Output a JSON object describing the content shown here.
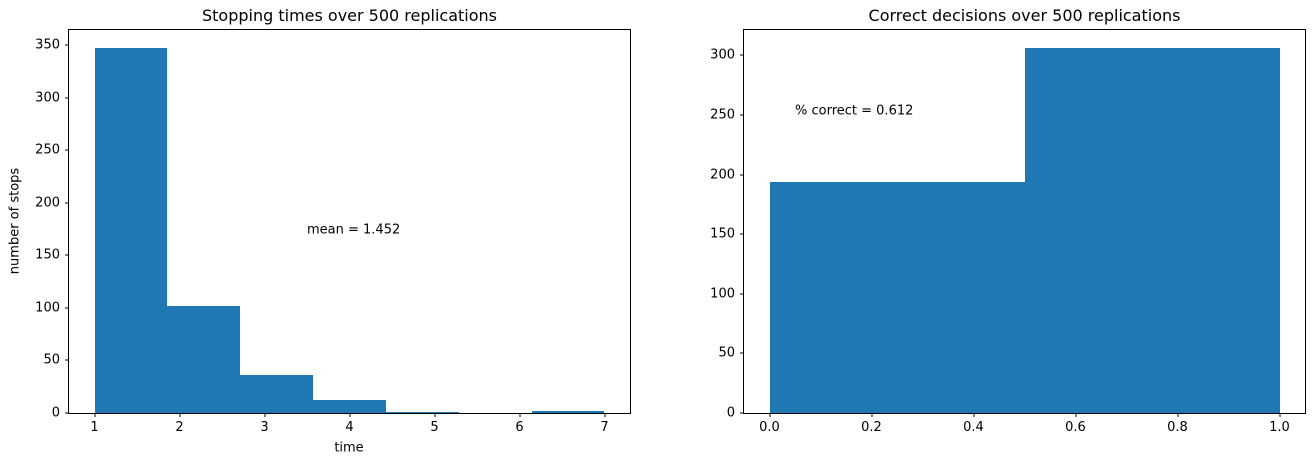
{
  "figure": {
    "background": "#ffffff",
    "bar_color": "#1f77b4",
    "spine_color": "#000000",
    "text_color": "#000000"
  },
  "chart_data": [
    {
      "type": "bar",
      "subtype": "histogram",
      "title": "Stopping times over 500 replications",
      "xlabel": "time",
      "ylabel": "number of stops",
      "bin_edges": [
        1,
        1.8571,
        2.7143,
        3.5714,
        4.4286,
        5.2857,
        6.1429,
        7
      ],
      "counts": [
        347,
        102,
        36,
        12,
        1,
        0,
        2
      ],
      "total_replications": 500,
      "xlim": [
        0.7,
        7.3
      ],
      "ylim": [
        0,
        364.4
      ],
      "xticks": [
        1,
        2,
        3,
        4,
        5,
        6,
        7
      ],
      "xtick_labels": [
        "1",
        "2",
        "3",
        "4",
        "5",
        "6",
        "7"
      ],
      "yticks": [
        0,
        50,
        100,
        150,
        200,
        250,
        300,
        350
      ],
      "ytick_labels": [
        "0",
        "50",
        "100",
        "150",
        "200",
        "250",
        "300",
        "350"
      ],
      "grid": false,
      "legend": null,
      "annotation": {
        "text": "mean = 1.452",
        "x": 3.5,
        "y": 174
      }
    },
    {
      "type": "bar",
      "subtype": "histogram",
      "title": "Correct decisions over 500 replications",
      "xlabel": "",
      "ylabel": "",
      "bin_edges": [
        0,
        0.5,
        1.0
      ],
      "counts": [
        194,
        306
      ],
      "total_replications": 500,
      "xlim": [
        -0.05,
        1.05
      ],
      "ylim": [
        0,
        321.3
      ],
      "xticks": [
        0.0,
        0.2,
        0.4,
        0.6,
        0.8,
        1.0
      ],
      "xtick_labels": [
        "0.0",
        "0.2",
        "0.4",
        "0.6",
        "0.8",
        "1.0"
      ],
      "yticks": [
        0,
        50,
        100,
        150,
        200,
        250,
        300
      ],
      "ytick_labels": [
        "0",
        "50",
        "100",
        "150",
        "200",
        "250",
        "300"
      ],
      "grid": false,
      "legend": null,
      "annotation": {
        "text": "% correct = 0.612",
        "x": 0.05,
        "y": 253
      }
    }
  ]
}
